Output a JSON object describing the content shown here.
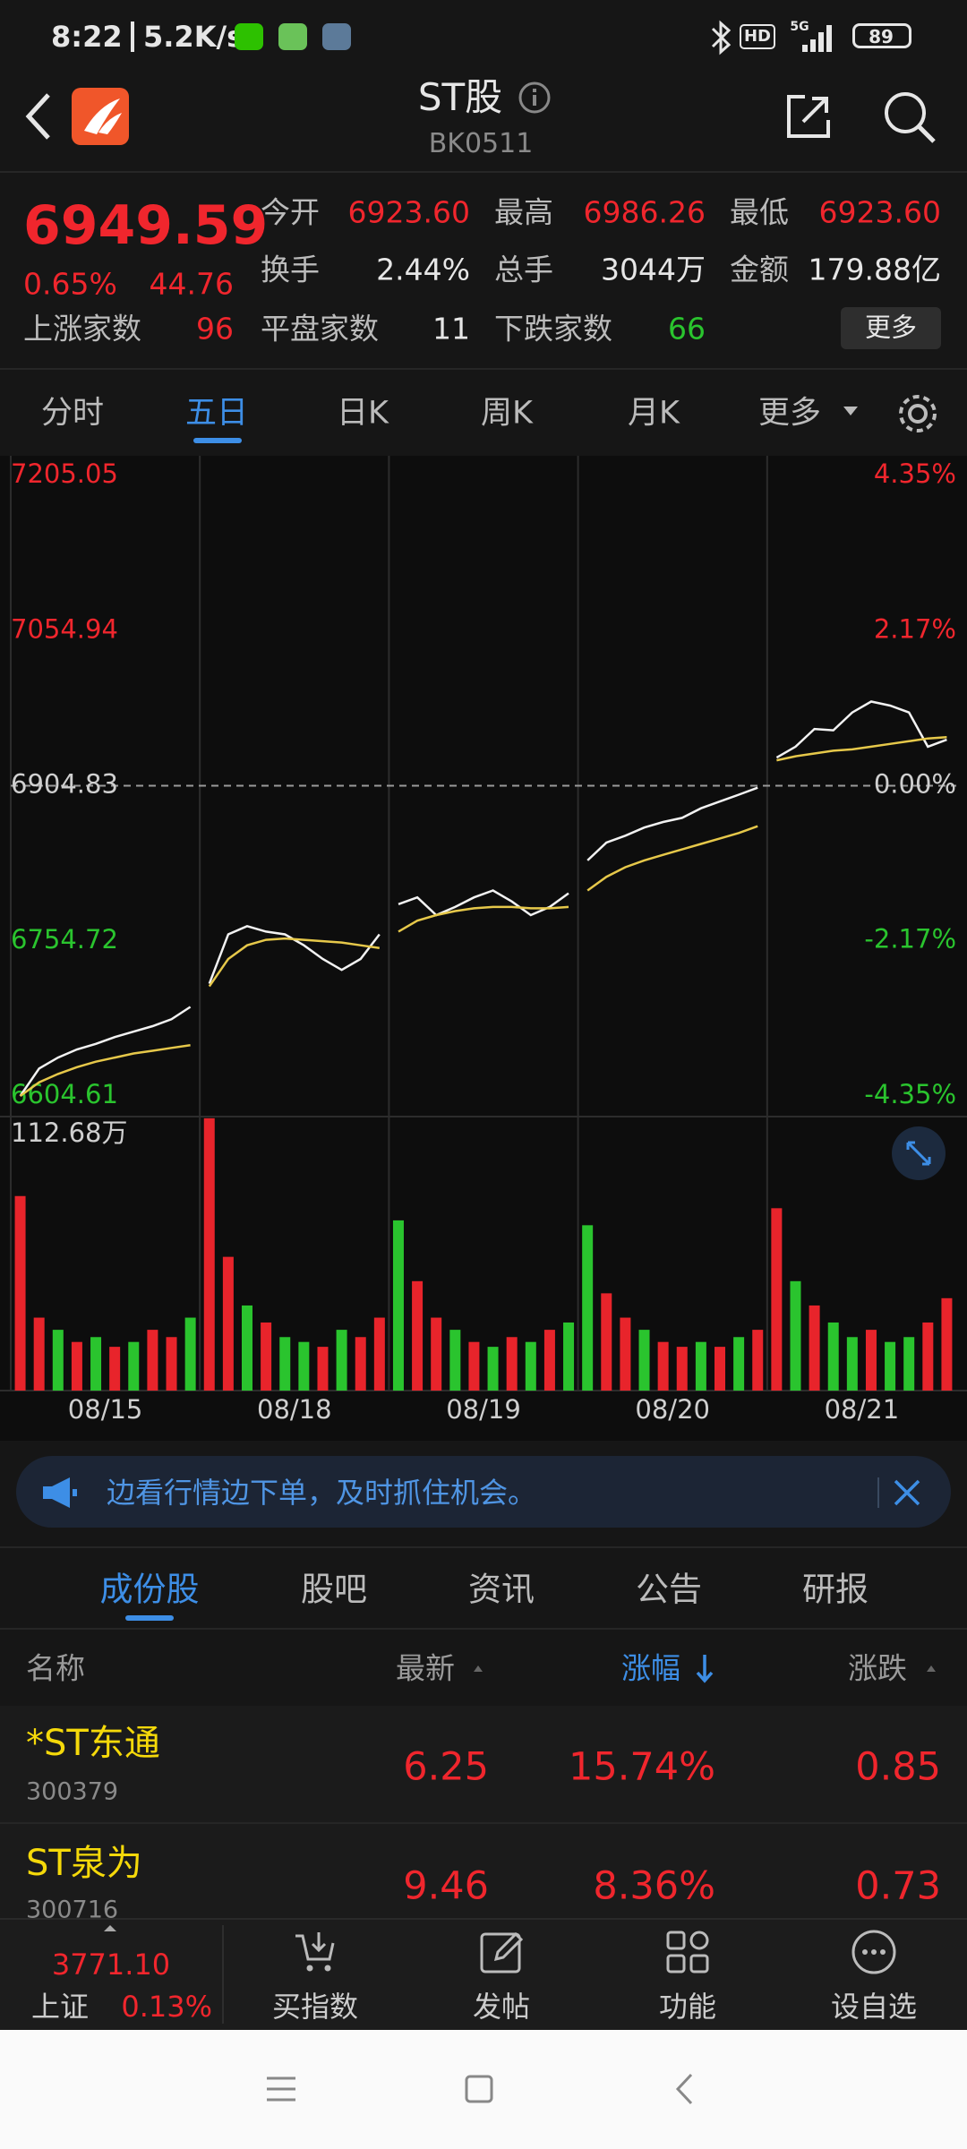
{
  "status_bar": {
    "time": "8:22",
    "speed": "5.2K/s",
    "hd": "HD",
    "network": "5G",
    "battery": "89"
  },
  "header": {
    "title": "ST股",
    "code": "BK0511"
  },
  "quote": {
    "price": "6949.59",
    "change_pct": "0.65%",
    "change": "44.76",
    "stats": [
      {
        "label": "今开",
        "value": "6923.60"
      },
      {
        "label": "最高",
        "value": "6986.26"
      },
      {
        "label": "最低",
        "value": "6923.60"
      },
      {
        "label": "换手",
        "value": "2.44%"
      },
      {
        "label": "总手",
        "value": "3044万"
      },
      {
        "label": "金额",
        "value": "179.88亿"
      }
    ],
    "breadth": [
      {
        "label": "上涨家数",
        "value": "96"
      },
      {
        "label": "平盘家数",
        "value": "11"
      },
      {
        "label": "下跌家数",
        "value": "66"
      }
    ],
    "more": "更多"
  },
  "tabs": [
    "分时",
    "五日",
    "日K",
    "周K",
    "月K",
    "更多"
  ],
  "chart_data": [
    {
      "type": "line",
      "categories": [
        "08/15",
        "08/18",
        "08/19",
        "08/20",
        "08/21"
      ],
      "ylim": [
        6604.61,
        7205.05
      ],
      "yticks": [
        7205.05,
        7054.94,
        6904.83,
        6754.72,
        6604.61
      ],
      "y2lim": [
        -4.35,
        4.35
      ],
      "y2ticks": [
        {
          "value": 4.35,
          "label": "4.35%"
        },
        {
          "value": 2.17,
          "label": "2.17%"
        },
        {
          "value": 0,
          "label": "0.00%"
        },
        {
          "value": -2.17,
          "label": "-2.17%"
        },
        {
          "value": -4.35,
          "label": "-4.35%"
        }
      ],
      "series": [
        {
          "color": "#f2f2f2",
          "values": [
            [
              6604.6,
              6631.2,
              6641.8,
              6649.7,
              6655.0,
              6661.6,
              6666.9,
              6672.2,
              6678.9,
              6690.8
            ],
            [
              6713.3,
              6761.0,
              6769.0,
              6763.7,
              6761.0,
              6750.4,
              6737.2,
              6726.6,
              6737.2,
              6761.0
            ],
            [
              6790.2,
              6796.8,
              6779.6,
              6787.5,
              6796.8,
              6803.5,
              6792.8,
              6779.6,
              6787.5,
              6800.8
            ],
            [
              6832.6,
              6849.8,
              6856.5,
              6864.4,
              6869.7,
              6873.7,
              6883.0,
              6889.6,
              6896.2,
              6902.9
            ],
            [
              6932.0,
              6942.6,
              6959.8,
              6958.5,
              6975.7,
              6986.3,
              6982.4,
              6975.7,
              6942.6,
              6949.4
            ]
          ]
        },
        {
          "color": "#e6c84a",
          "values": [
            [
              6604.6,
              6617.9,
              6625.9,
              6632.5,
              6637.8,
              6641.8,
              6645.8,
              6648.4,
              6651.1,
              6653.7
            ],
            [
              6710.7,
              6737.2,
              6750.4,
              6755.7,
              6757.0,
              6755.7,
              6754.4,
              6753.1,
              6750.4,
              6747.8
            ],
            [
              6763.7,
              6774.3,
              6779.6,
              6783.5,
              6786.2,
              6787.5,
              6787.5,
              6786.2,
              6786.2,
              6787.5
            ],
            [
              6803.5,
              6816.7,
              6826.0,
              6832.6,
              6837.9,
              6843.2,
              6848.5,
              6853.8,
              6859.1,
              6865.7
            ],
            [
              6929.4,
              6933.3,
              6936.0,
              6938.7,
              6940.0,
              6942.6,
              6945.3,
              6947.9,
              6950.6,
              6951.9
            ]
          ]
        }
      ]
    },
    {
      "type": "bar",
      "ylim": [
        0,
        112.68
      ],
      "yticks": [
        {
          "value": 112.68,
          "label": "112.68万"
        }
      ],
      "values": [
        [
          80,
          30,
          25,
          20,
          22,
          18,
          20,
          25,
          22,
          30
        ],
        [
          112,
          55,
          35,
          28,
          22,
          20,
          18,
          25,
          22,
          30
        ],
        [
          70,
          45,
          30,
          25,
          20,
          18,
          22,
          20,
          25,
          28
        ],
        [
          68,
          40,
          30,
          25,
          20,
          18,
          20,
          18,
          22,
          25
        ],
        [
          75,
          45,
          35,
          28,
          22,
          25,
          20,
          22,
          28,
          38
        ]
      ],
      "colors": [
        [
          "#e8242b",
          "#e8242b",
          "#2ac42e",
          "#e8242b",
          "#2ac42e",
          "#e8242b",
          "#2ac42e",
          "#e8242b",
          "#e8242b",
          "#2ac42e"
        ],
        [
          "#e8242b",
          "#e8242b",
          "#2ac42e",
          "#e8242b",
          "#2ac42e",
          "#2ac42e",
          "#e8242b",
          "#2ac42e",
          "#e8242b",
          "#e8242b"
        ],
        [
          "#2ac42e",
          "#e8242b",
          "#e8242b",
          "#2ac42e",
          "#e8242b",
          "#2ac42e",
          "#e8242b",
          "#2ac42e",
          "#e8242b",
          "#2ac42e"
        ],
        [
          "#2ac42e",
          "#e8242b",
          "#e8242b",
          "#2ac42e",
          "#e8242b",
          "#e8242b",
          "#2ac42e",
          "#e8242b",
          "#2ac42e",
          "#e8242b"
        ],
        [
          "#e8242b",
          "#2ac42e",
          "#e8242b",
          "#2ac42e",
          "#2ac42e",
          "#e8242b",
          "#2ac42e",
          "#2ac42e",
          "#e8242b",
          "#e8242b"
        ]
      ]
    }
  ],
  "banner": "边看行情边下单，及时抓住机会。",
  "list_tabs": [
    "成份股",
    "股吧",
    "资讯",
    "公告",
    "研报"
  ],
  "table": {
    "columns": [
      "名称",
      "最新",
      "涨幅",
      "涨跌"
    ],
    "rows": [
      [
        "*ST东通",
        "300379",
        "6.25",
        "15.74%",
        "0.85"
      ],
      [
        "ST泉为",
        "300716",
        "9.46",
        "8.36%",
        "0.73"
      ]
    ]
  },
  "bottom_nav": {
    "index_value": "3771.10",
    "index_name": "上证",
    "index_change": "0.13%",
    "items": [
      "买指数",
      "发帖",
      "功能",
      "设自选"
    ]
  }
}
